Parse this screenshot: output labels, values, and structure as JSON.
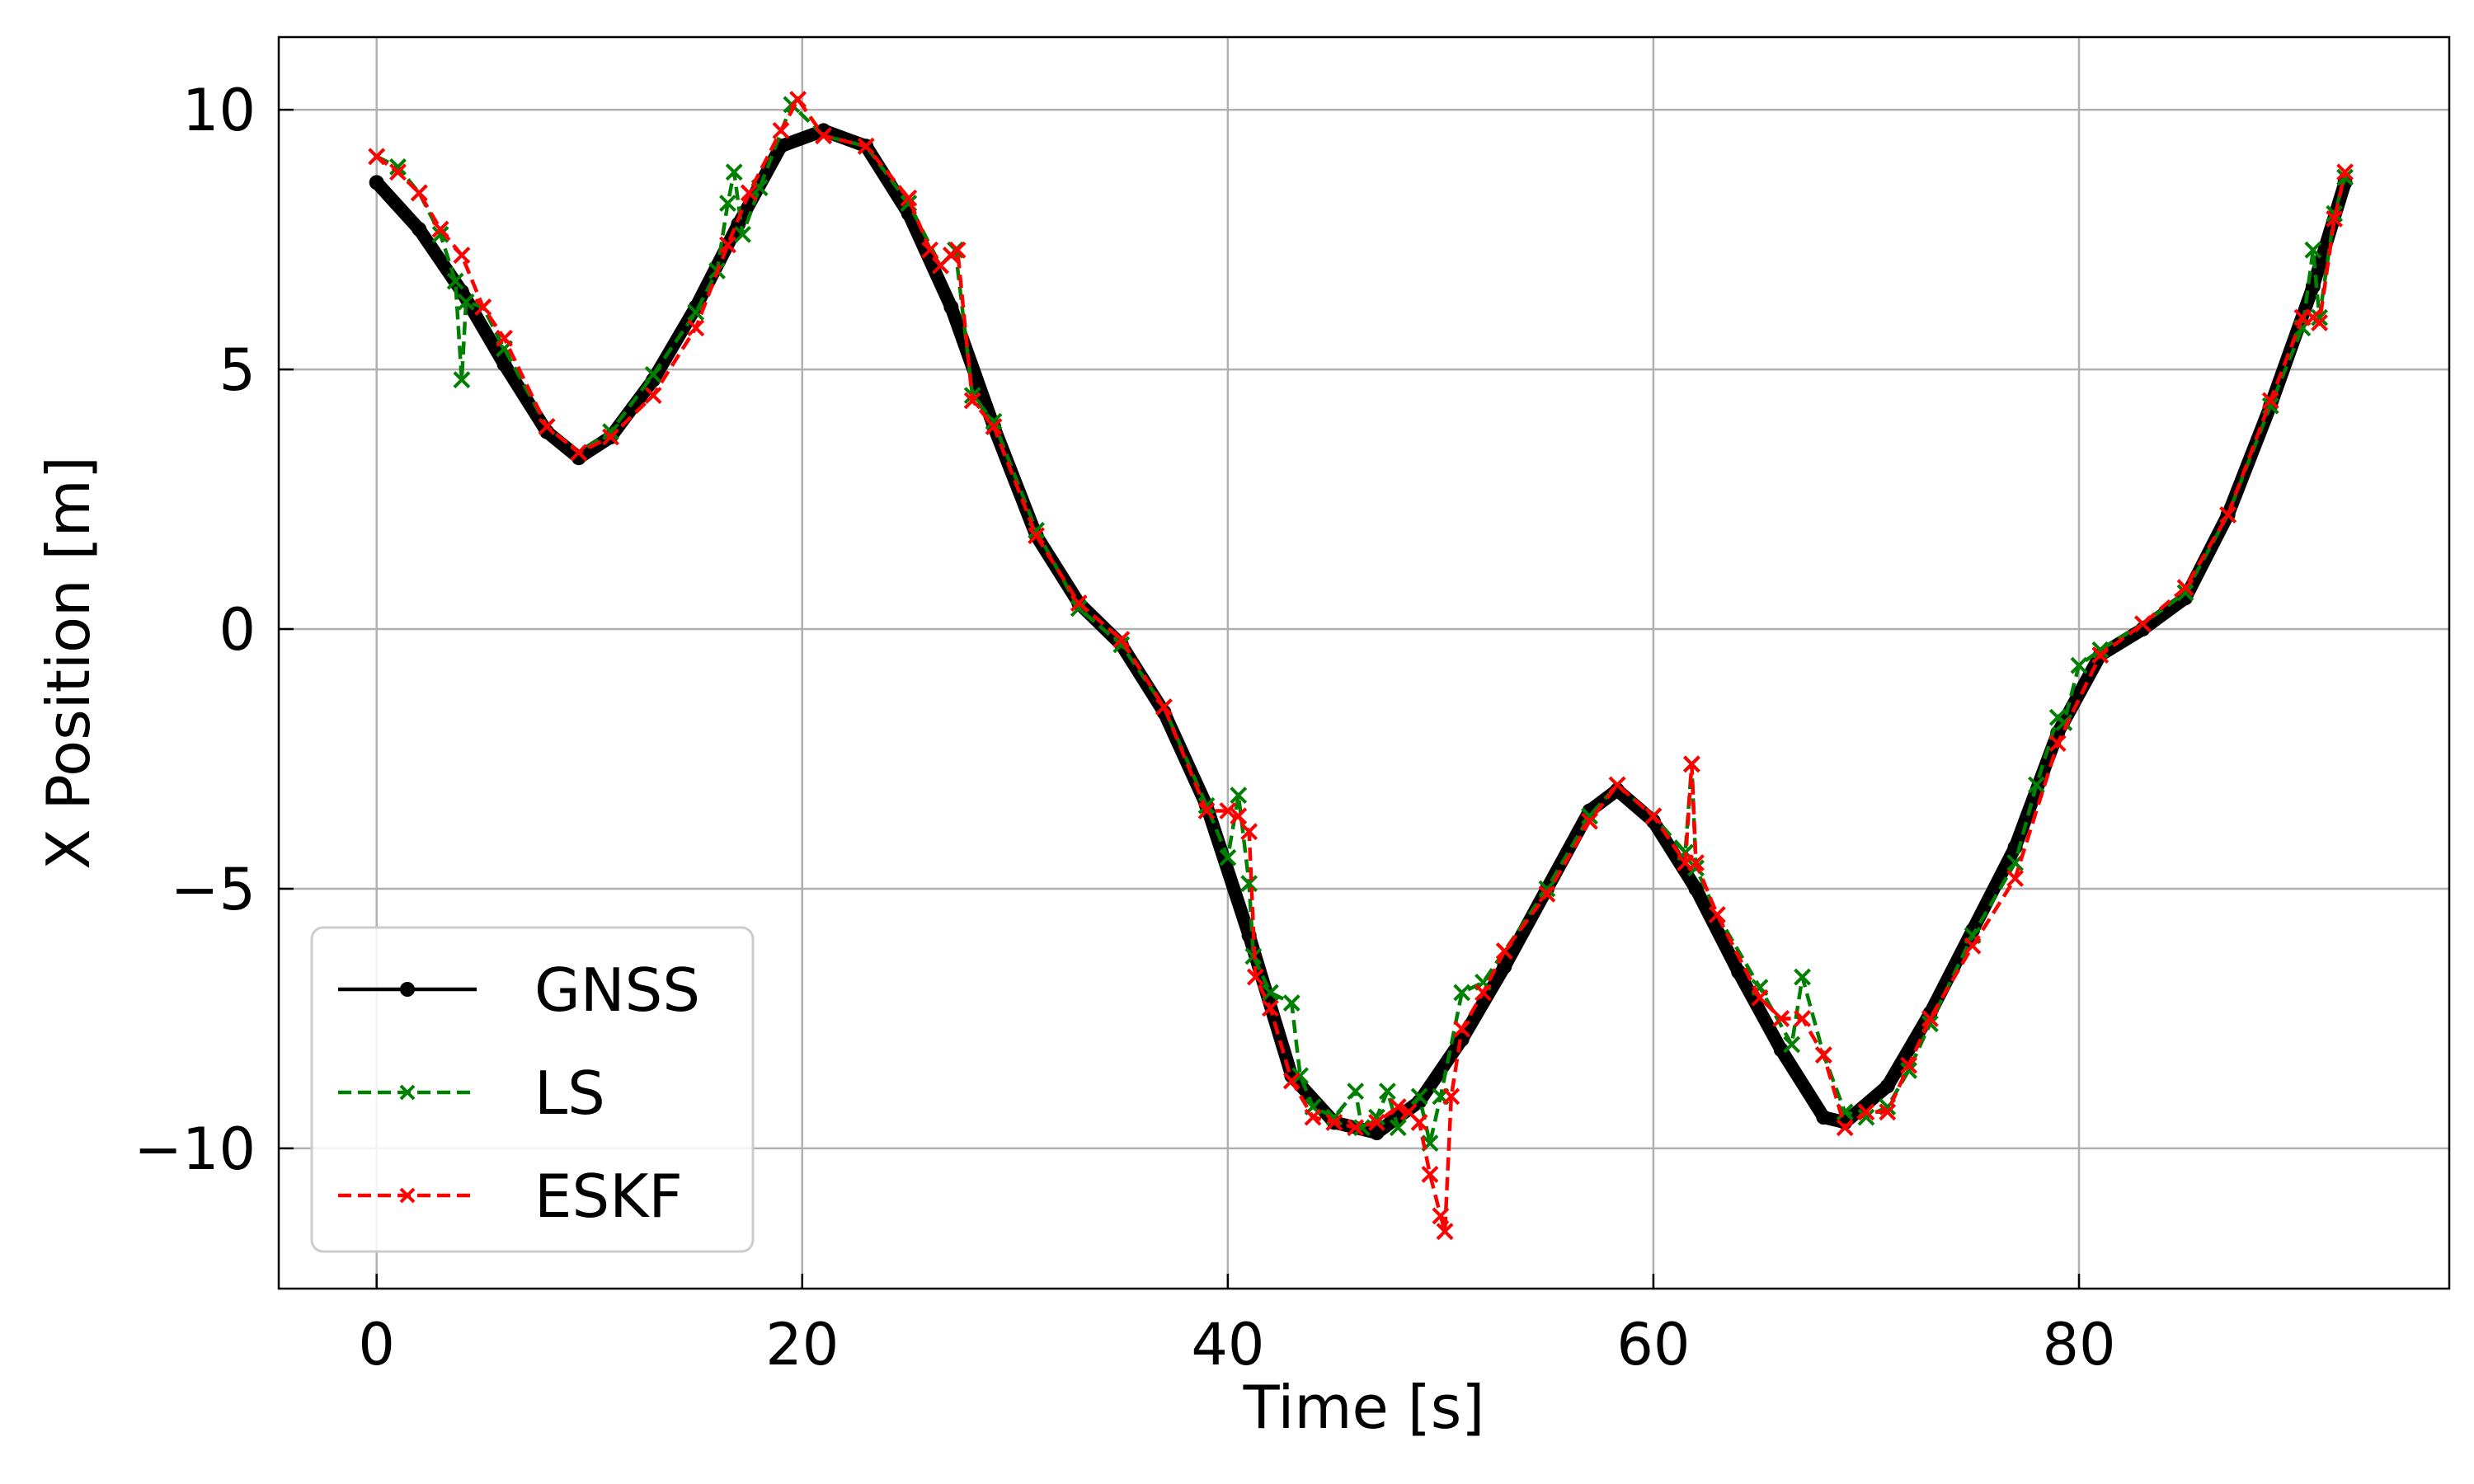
{
  "chart_data": {
    "type": "line",
    "xlabel": "Time [s]",
    "ylabel": "X Position [m]",
    "xlim": [
      -4.6,
      97.4
    ],
    "ylim": [
      -12.7,
      11.4
    ],
    "xticks": [
      0,
      20,
      40,
      60,
      80
    ],
    "yticks": [
      10,
      5,
      0,
      -5,
      -10
    ],
    "xtick_labels": [
      "0",
      "20",
      "40",
      "60",
      "80"
    ],
    "ytick_labels": [
      "10",
      "5",
      "0",
      "−5",
      "−10"
    ],
    "grid": true,
    "legend_position": "lower-left",
    "series": [
      {
        "name": "GNSS",
        "color": "#000000",
        "linestyle": "solid",
        "marker": "dot",
        "x": [
          0,
          2,
          4,
          6,
          8,
          9.5,
          11,
          13,
          15,
          17,
          19,
          21,
          23,
          25,
          27,
          29,
          31,
          33,
          35,
          37,
          39,
          41,
          43,
          45,
          47,
          49,
          51,
          53,
          55,
          57,
          58.3,
          60,
          62,
          64,
          66,
          68,
          69,
          71,
          73,
          75,
          77,
          79,
          81,
          83,
          85,
          87,
          89,
          91,
          92.5
        ],
        "y": [
          8.6,
          7.7,
          6.5,
          5.1,
          3.8,
          3.3,
          3.7,
          4.8,
          6.2,
          7.8,
          9.3,
          9.6,
          9.3,
          8.0,
          6.2,
          3.9,
          1.8,
          0.5,
          -0.3,
          -1.6,
          -3.4,
          -5.9,
          -8.6,
          -9.5,
          -9.7,
          -9.1,
          -7.9,
          -6.5,
          -5.0,
          -3.5,
          -3.1,
          -3.7,
          -5.0,
          -6.6,
          -8.1,
          -9.4,
          -9.5,
          -8.8,
          -7.4,
          -5.8,
          -4.2,
          -2.0,
          -0.5,
          0.0,
          0.6,
          2.2,
          4.3,
          6.6,
          8.6
        ]
      },
      {
        "name": "LS",
        "color": "#008000",
        "linestyle": "dashed",
        "marker": "x",
        "x": [
          0,
          1,
          2,
          3,
          3.7,
          4,
          4.2,
          5,
          6,
          8,
          9.5,
          11,
          13,
          15,
          16,
          16.5,
          16.8,
          17.2,
          18,
          19.5,
          21,
          23,
          25,
          26.5,
          27.2,
          28,
          29,
          31,
          33,
          35,
          37,
          39,
          40,
          40.5,
          41,
          41.2,
          42,
          43,
          43.4,
          44,
          45,
          46,
          46.3,
          47,
          47.5,
          48,
          49,
          49.5,
          50,
          51,
          52,
          53,
          55,
          57,
          58.3,
          60,
          61.5,
          61.8,
          62,
          63,
          65,
          66.5,
          67,
          68,
          69,
          70,
          71,
          72,
          73,
          75,
          77,
          78,
          79,
          79.3,
          80,
          81,
          83,
          85,
          87,
          89,
          90.5,
          91,
          91.3,
          92,
          92.5
        ],
        "y": [
          9.1,
          8.9,
          8.4,
          7.6,
          6.7,
          4.8,
          6.3,
          6.2,
          5.4,
          3.9,
          3.4,
          3.8,
          4.9,
          6.1,
          6.9,
          8.2,
          8.8,
          7.6,
          8.5,
          10.1,
          9.5,
          9.3,
          8.2,
          7.0,
          7.3,
          4.5,
          4.0,
          1.9,
          0.4,
          -0.3,
          -1.5,
          -3.4,
          -4.4,
          -3.2,
          -4.9,
          -6.3,
          -7.0,
          -7.2,
          -8.6,
          -9.2,
          -9.4,
          -8.9,
          -9.6,
          -9.4,
          -8.9,
          -9.6,
          -9.0,
          -9.9,
          -9.0,
          -7.0,
          -6.8,
          -6.2,
          -5.0,
          -3.6,
          -3.0,
          -3.6,
          -4.3,
          -2.6,
          -4.6,
          -5.5,
          -6.9,
          -8.0,
          -6.7,
          -8.2,
          -9.3,
          -9.4,
          -9.2,
          -8.5,
          -7.6,
          -5.9,
          -4.5,
          -3.0,
          -1.7,
          -1.8,
          -0.7,
          -0.4,
          0.1,
          0.7,
          2.2,
          4.3,
          5.8,
          7.3,
          6.0,
          8.0,
          8.7
        ]
      },
      {
        "name": "ESKF",
        "color": "#ff0000",
        "linestyle": "dashed",
        "marker": "x",
        "x": [
          0,
          1,
          2,
          3,
          4,
          5,
          6,
          8,
          9.5,
          11,
          13,
          15,
          16.5,
          17.5,
          19,
          19.8,
          21,
          23,
          25,
          26,
          26.5,
          27,
          27.3,
          28,
          29,
          31,
          33,
          35,
          37,
          39,
          40,
          40.5,
          41,
          41.3,
          42,
          43,
          44,
          45,
          46,
          47,
          48,
          48.5,
          49,
          49.5,
          50,
          50.2,
          50.5,
          51,
          52,
          53,
          55,
          57,
          58.3,
          60,
          61.5,
          61.8,
          62,
          63,
          65,
          66,
          67,
          68,
          69,
          70,
          71,
          72,
          73,
          75,
          77,
          79,
          81,
          83,
          85,
          87,
          89,
          90.5,
          91,
          91.3,
          92,
          92.5
        ],
        "y": [
          9.1,
          8.8,
          8.4,
          7.7,
          7.2,
          6.2,
          5.6,
          3.9,
          3.4,
          3.7,
          4.5,
          5.8,
          7.4,
          8.4,
          9.6,
          10.2,
          9.5,
          9.3,
          8.3,
          7.3,
          7.0,
          7.2,
          7.3,
          4.4,
          3.9,
          1.8,
          0.5,
          -0.2,
          -1.5,
          -3.5,
          -3.5,
          -3.6,
          -3.9,
          -6.7,
          -7.3,
          -8.7,
          -9.4,
          -9.5,
          -9.6,
          -9.5,
          -9.2,
          -9.3,
          -9.5,
          -10.5,
          -11.3,
          -11.6,
          -9.0,
          -7.7,
          -7.0,
          -6.2,
          -5.1,
          -3.7,
          -3.0,
          -3.6,
          -4.5,
          -2.6,
          -4.5,
          -5.5,
          -7.1,
          -7.5,
          -7.5,
          -8.2,
          -9.6,
          -9.3,
          -9.3,
          -8.4,
          -7.5,
          -6.1,
          -4.8,
          -2.2,
          -0.5,
          0.1,
          0.8,
          2.2,
          4.4,
          6.0,
          6.0,
          5.9,
          7.9,
          8.8
        ]
      }
    ]
  }
}
